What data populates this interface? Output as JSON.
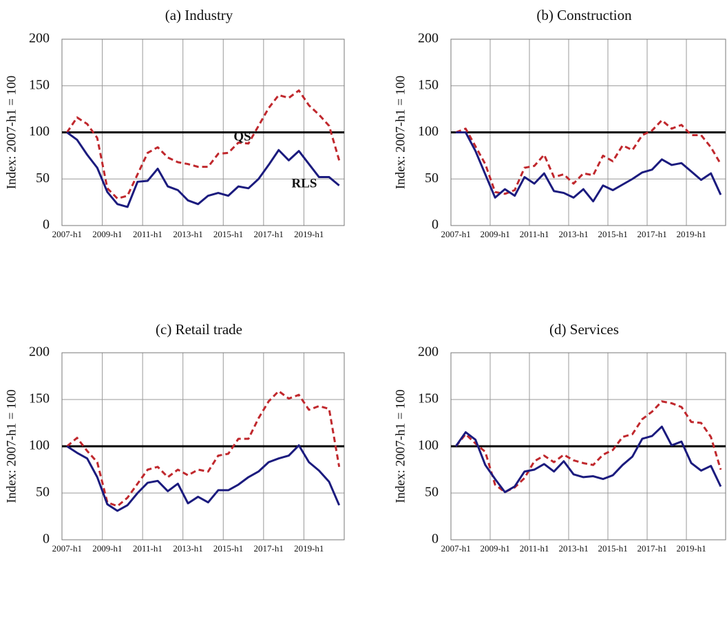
{
  "chart_data": [
    {
      "type": "line",
      "title": "(a) Industry",
      "y_label": "Index: 2007-h1 = 100",
      "categories": [
        "2007-h1",
        null,
        null,
        null,
        "2009-h1",
        null,
        null,
        null,
        "2011-h1",
        null,
        null,
        null,
        "2013-h1",
        null,
        null,
        null,
        "2015-h1",
        null,
        null,
        null,
        "2017-h1",
        null,
        null,
        null,
        "2019-h1",
        null,
        null,
        null
      ],
      "series": [
        {
          "name": "QS",
          "color": "#c0282d",
          "line_style": "dashed",
          "values": [
            100,
            116,
            109,
            94,
            40,
            29,
            32,
            55,
            78,
            84,
            73,
            68,
            66,
            63,
            63,
            77,
            78,
            89,
            88,
            107,
            126,
            140,
            137,
            145,
            129,
            119,
            107,
            70
          ]
        },
        {
          "name": "RLS",
          "color": "#1b1b7e",
          "line_style": "solid",
          "values": [
            100,
            92,
            76,
            62,
            36,
            23,
            20,
            47,
            48,
            61,
            42,
            38,
            27,
            23,
            32,
            35,
            32,
            42,
            40,
            50,
            65,
            81,
            70,
            80,
            66,
            52,
            52,
            43
          ]
        }
      ],
      "ylim": [
        0,
        200
      ],
      "yticks": [
        0,
        50,
        100,
        150,
        200
      ],
      "grid": true,
      "reference_line": 100
    },
    {
      "type": "line",
      "title": "(b) Construction",
      "y_label": "Index: 2007-h1 = 100",
      "categories": [
        "2007-h1",
        null,
        null,
        null,
        "2009-h1",
        null,
        null,
        null,
        "2011-h1",
        null,
        null,
        null,
        "2013-h1",
        null,
        null,
        null,
        "2015-h1",
        null,
        null,
        null,
        "2017-h1",
        null,
        null,
        null,
        "2019-h1",
        null,
        null,
        null
      ],
      "series": [
        {
          "color": "#c0282d",
          "line_style": "dashed",
          "values": [
            100,
            104,
            85,
            66,
            36,
            34,
            38,
            62,
            64,
            76,
            52,
            55,
            45,
            56,
            54,
            75,
            69,
            86,
            81,
            97,
            102,
            113,
            104,
            108,
            97,
            97,
            84,
            66
          ]
        },
        {
          "color": "#1b1b7e",
          "line_style": "solid",
          "values": [
            100,
            100,
            80,
            55,
            30,
            39,
            32,
            52,
            45,
            56,
            37,
            35,
            30,
            39,
            26,
            43,
            38,
            44,
            50,
            57,
            60,
            71,
            65,
            67,
            58,
            49,
            56,
            33
          ]
        }
      ],
      "ylim": [
        0,
        200
      ],
      "yticks": [
        0,
        50,
        100,
        150,
        200
      ],
      "grid": true,
      "reference_line": 100
    },
    {
      "type": "line",
      "title": "(c) Retail trade",
      "y_label": "Index: 2007-h1 = 100",
      "categories": [
        "2007-h1",
        null,
        null,
        null,
        "2009-h1",
        null,
        null,
        null,
        "2011-h1",
        null,
        null,
        null,
        "2013-h1",
        null,
        null,
        null,
        "2015-h1",
        null,
        null,
        null,
        "2017-h1",
        null,
        null,
        null,
        "2019-h1",
        null,
        null,
        null
      ],
      "series": [
        {
          "color": "#c0282d",
          "line_style": "dashed",
          "values": [
            100,
            109,
            95,
            83,
            40,
            36,
            45,
            60,
            75,
            78,
            67,
            75,
            69,
            75,
            73,
            90,
            92,
            108,
            108,
            130,
            148,
            159,
            151,
            155,
            139,
            143,
            140,
            78
          ]
        },
        {
          "color": "#1b1b7e",
          "line_style": "solid",
          "values": [
            100,
            93,
            87,
            67,
            38,
            31,
            37,
            50,
            61,
            63,
            52,
            60,
            39,
            46,
            40,
            53,
            53,
            59,
            67,
            73,
            83,
            87,
            90,
            101,
            83,
            74,
            62,
            37
          ]
        }
      ],
      "ylim": [
        0,
        200
      ],
      "yticks": [
        0,
        50,
        100,
        150,
        200
      ],
      "grid": true,
      "reference_line": 100
    },
    {
      "type": "line",
      "title": "(d) Services",
      "y_label": "Index: 2007-h1 = 100",
      "categories": [
        "2007-h1",
        null,
        null,
        null,
        "2009-h1",
        null,
        null,
        null,
        "2011-h1",
        null,
        null,
        null,
        "2013-h1",
        null,
        null,
        null,
        "2015-h1",
        null,
        null,
        null,
        "2017-h1",
        null,
        null,
        null,
        "2019-h1",
        null,
        null,
        null
      ],
      "series": [
        {
          "color": "#c0282d",
          "line_style": "dashed",
          "values": [
            100,
            113,
            103,
            94,
            59,
            51,
            56,
            66,
            84,
            90,
            83,
            91,
            85,
            82,
            80,
            91,
            96,
            110,
            113,
            129,
            137,
            148,
            146,
            142,
            126,
            125,
            110,
            75
          ]
        },
        {
          "color": "#1b1b7e",
          "line_style": "solid",
          "values": [
            100,
            115,
            107,
            80,
            65,
            51,
            57,
            73,
            75,
            81,
            73,
            84,
            70,
            67,
            68,
            65,
            69,
            80,
            89,
            108,
            111,
            121,
            101,
            105,
            82,
            74,
            79,
            57
          ]
        }
      ],
      "ylim": [
        0,
        200
      ],
      "yticks": [
        0,
        50,
        100,
        150,
        200
      ],
      "grid": true,
      "reference_line": 100
    }
  ]
}
